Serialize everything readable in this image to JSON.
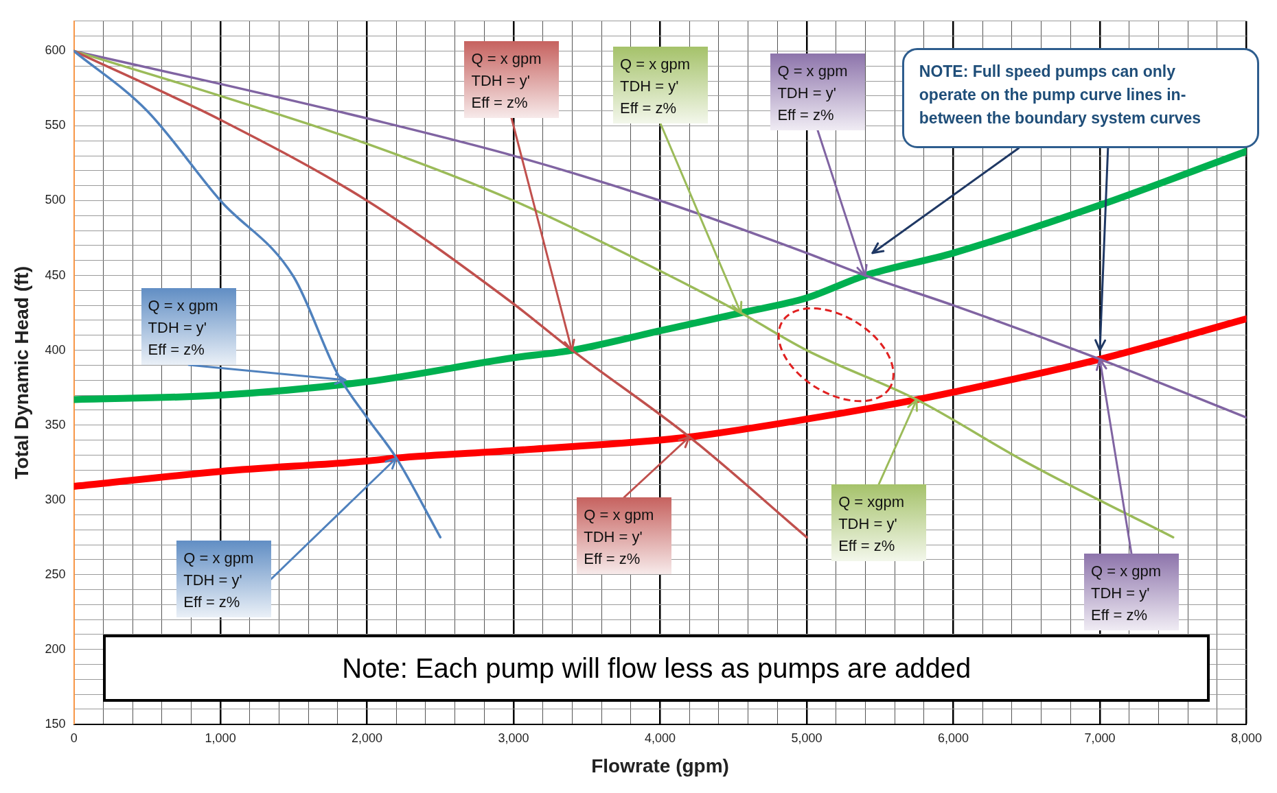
{
  "chart_data": {
    "type": "line",
    "xlabel": "Flowrate (gpm)",
    "ylabel": "Total Dynamic Head (ft)",
    "xlim": [
      0,
      8000
    ],
    "ylim": [
      150,
      620
    ],
    "xticks": [
      0,
      {
        "value": 200,
        "label": null
      },
      {
        "value": 400,
        "label": null
      },
      {
        "value": 600,
        "label": null
      },
      {
        "value": 800,
        "label": null
      },
      {
        "value": 1000,
        "label": "1,000"
      },
      {
        "value": 1200,
        "label": null
      },
      {
        "value": 1400,
        "label": null
      },
      {
        "value": 1600,
        "label": null
      },
      {
        "value": 1800,
        "label": null
      },
      {
        "value": 2000,
        "label": "2,000"
      },
      {
        "value": 2200,
        "label": null
      },
      {
        "value": 2400,
        "label": null
      },
      {
        "value": 2600,
        "label": null
      },
      {
        "value": 2800,
        "label": null
      },
      {
        "value": 3000,
        "label": "3,000"
      },
      {
        "value": 3200,
        "label": null
      },
      {
        "value": 3400,
        "label": null
      },
      {
        "value": 3600,
        "label": null
      },
      {
        "value": 3800,
        "label": null
      },
      {
        "value": 4000,
        "label": "4,000"
      },
      {
        "value": 4200,
        "label": null
      },
      {
        "value": 4400,
        "label": null
      },
      {
        "value": 4600,
        "label": null
      },
      {
        "value": 4800,
        "label": null
      },
      {
        "value": 5000,
        "label": "5,000"
      },
      {
        "value": 5200,
        "label": null
      },
      {
        "value": 5400,
        "label": null
      },
      {
        "value": 5600,
        "label": null
      },
      {
        "value": 5800,
        "label": null
      },
      {
        "value": 6000,
        "label": "6,000"
      },
      {
        "value": 6200,
        "label": null
      },
      {
        "value": 6400,
        "label": null
      },
      {
        "value": 6600,
        "label": null
      },
      {
        "value": 6800,
        "label": null
      },
      {
        "value": 7000,
        "label": "7,000"
      },
      {
        "value": 7200,
        "label": null
      },
      {
        "value": 7400,
        "label": null
      },
      {
        "value": 7600,
        "label": null
      },
      {
        "value": 7800,
        "label": null
      },
      {
        "value": 8000,
        "label": "8,000"
      }
    ],
    "yticks": [
      150,
      {
        "value": 160,
        "label": null
      },
      {
        "value": 170,
        "label": null
      },
      {
        "value": 180,
        "label": null
      },
      {
        "value": 190,
        "label": null
      },
      200,
      {
        "value": 210,
        "label": null
      },
      {
        "value": 220,
        "label": null
      },
      {
        "value": 230,
        "label": null
      },
      {
        "value": 240,
        "label": null
      },
      250,
      {
        "value": 260,
        "label": null
      },
      {
        "value": 270,
        "label": null
      },
      {
        "value": 280,
        "label": null
      },
      {
        "value": 290,
        "label": null
      },
      300,
      {
        "value": 310,
        "label": null
      },
      {
        "value": 320,
        "label": null
      },
      {
        "value": 330,
        "label": null
      },
      {
        "value": 340,
        "label": null
      },
      350,
      {
        "value": 360,
        "label": null
      },
      {
        "value": 370,
        "label": null
      },
      {
        "value": 380,
        "label": null
      },
      {
        "value": 390,
        "label": null
      },
      400,
      {
        "value": 410,
        "label": null
      },
      {
        "value": 420,
        "label": null
      },
      {
        "value": 430,
        "label": null
      },
      {
        "value": 440,
        "label": null
      },
      450,
      {
        "value": 460,
        "label": null
      },
      {
        "value": 470,
        "label": null
      },
      {
        "value": 480,
        "label": null
      },
      {
        "value": 490,
        "label": null
      },
      500,
      {
        "value": 510,
        "label": null
      },
      {
        "value": 520,
        "label": null
      },
      {
        "value": 530,
        "label": null
      },
      {
        "value": 540,
        "label": null
      },
      550,
      {
        "value": 560,
        "label": null
      },
      {
        "value": 570,
        "label": null
      },
      {
        "value": 580,
        "label": null
      },
      {
        "value": 590,
        "label": null
      },
      600,
      {
        "value": 610,
        "label": null
      },
      {
        "value": 620,
        "label": null
      }
    ],
    "grid": true,
    "legend": false,
    "marker": "none",
    "line_style": "solid",
    "series": [
      {
        "color": "#4f81bd",
        "x": [
          0,
          500,
          1000,
          1500,
          1800,
          2000,
          2200,
          2500
        ],
        "values": [
          600,
          560,
          500,
          449,
          384,
          355,
          328,
          275
        ]
      },
      {
        "color": "#c0504d",
        "x": [
          0,
          1000,
          2000,
          3000,
          3400,
          4200,
          5000
        ],
        "values": [
          600,
          554,
          500,
          431,
          400,
          342,
          275
        ]
      },
      {
        "color": "#9bbb59",
        "x": [
          0,
          1000,
          2000,
          3000,
          4000,
          4550,
          5000,
          5750,
          6500,
          7500
        ],
        "values": [
          600,
          570,
          538,
          500,
          453,
          425,
          400,
          367,
          325,
          275
        ]
      },
      {
        "color": "#8064a2",
        "x": [
          0,
          1000,
          2000,
          3000,
          4000,
          5000,
          5400,
          6000,
          7000,
          8000
        ],
        "values": [
          600,
          578,
          555,
          530,
          500,
          465,
          450,
          430,
          394,
          355
        ]
      },
      {
        "color": "#00b050",
        "x": [
          0,
          1000,
          2000,
          3000,
          3400,
          4000,
          4550,
          5000,
          5400,
          6000,
          7000,
          8000
        ],
        "values": [
          367,
          370,
          379,
          395,
          400,
          413,
          425,
          435,
          450,
          465,
          497,
          533
        ]
      },
      {
        "color": "#ff0000",
        "x": [
          0,
          1000,
          2000,
          2200,
          3000,
          4000,
          4200,
          5000,
          5750,
          6000,
          7000,
          8000
        ],
        "values": [
          309,
          319,
          326,
          328,
          333,
          340,
          342,
          354,
          367,
          372,
          394,
          421
        ]
      }
    ],
    "annotations": [
      {
        "text": "Q = x gpm\nTDH = y'\nEff = z%",
        "x": 1850,
        "y": 380
      },
      {
        "text": "Q = x gpm\nTDH = y'\nEff = z%",
        "x": 2200,
        "y": 328
      },
      {
        "text": "Q = x gpm\nTDH = y'\nEff = z%",
        "x": 3400,
        "y": 400
      },
      {
        "text": "Q = x gpm\nTDH = y'\nEff = z%",
        "x": 4200,
        "y": 342
      },
      {
        "text": "Q = x gpm\nTDH = y'\nEff = z%",
        "x": 4550,
        "y": 425
      },
      {
        "text": "Q = xgpm\nTDH = y'\nEff = z%",
        "x": 5750,
        "y": 367
      },
      {
        "text": "Q = x gpm\nTDH = y'\nEff = z%",
        "x": 5400,
        "y": 450
      },
      {
        "text": "Q = x gpm\nTDH = y'\nEff = z%",
        "x": 7000,
        "y": 394
      },
      "NOTE: Full speed pumps can only\noperate on the pump curve lines in-\nbetween the boundary system curves",
      "Note: Each pump will flow less as pumps are added"
    ]
  }
}
